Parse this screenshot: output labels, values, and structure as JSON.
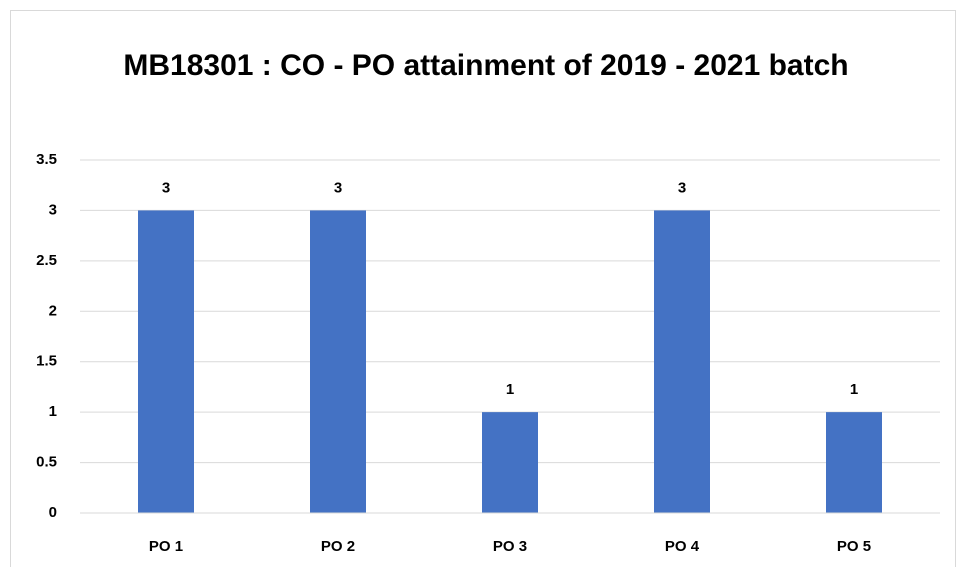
{
  "chart_data": {
    "type": "bar",
    "title": "MB18301 : CO - PO attainment of 2019 - 2021 batch",
    "categories": [
      "PO 1",
      "PO 2",
      "PO 3",
      "PO 4",
      "PO 5"
    ],
    "values": [
      3,
      3,
      1,
      3,
      1
    ],
    "color": "#4472c4",
    "ylim": [
      0,
      3.5
    ],
    "yticks": [
      0,
      0.5,
      1,
      1.5,
      2,
      2.5,
      3,
      3.5
    ],
    "grid": true
  }
}
